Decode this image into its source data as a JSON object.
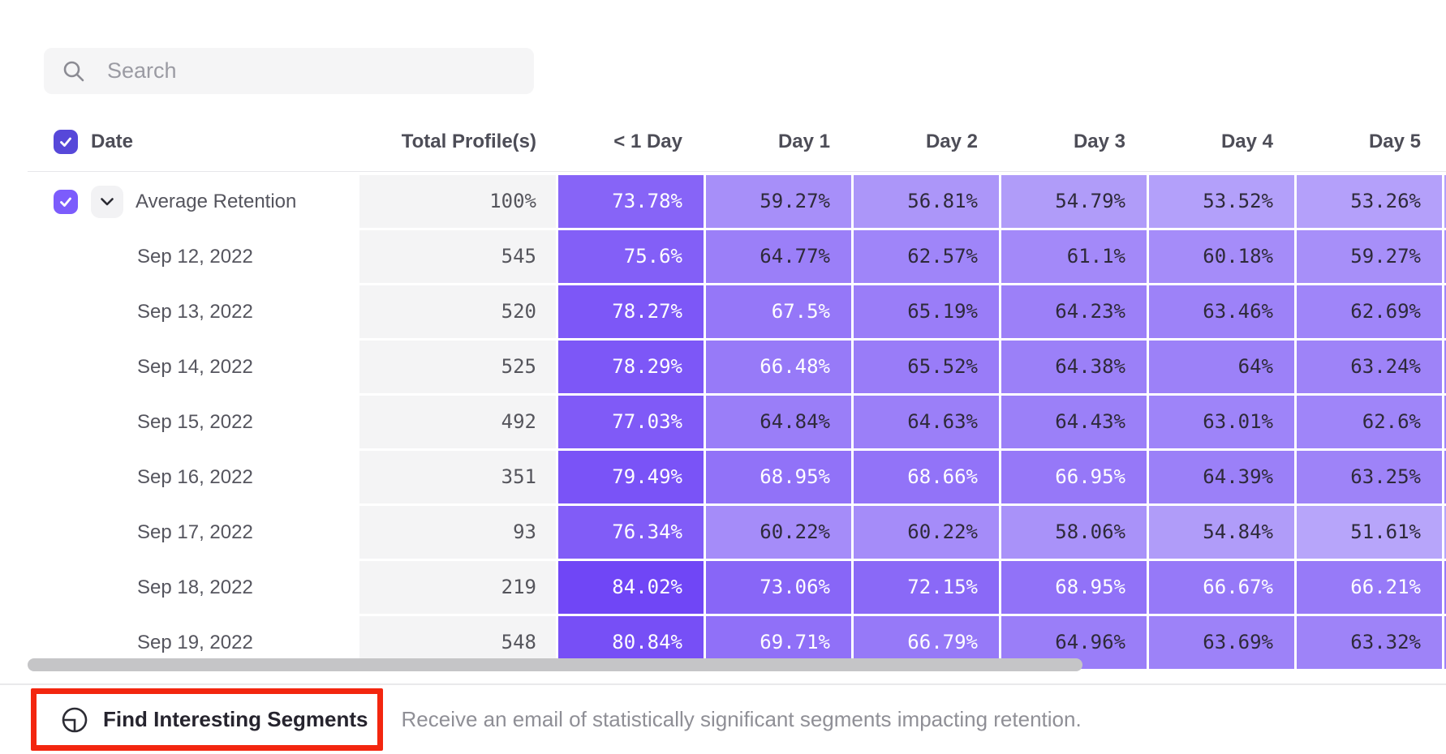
{
  "search": {
    "placeholder": "Search"
  },
  "table": {
    "date_header": "Date",
    "total_header": "Total Profile(s)",
    "day_headers": [
      "< 1 Day",
      "Day 1",
      "Day 2",
      "Day 3",
      "Day 4",
      "Day 5"
    ],
    "rows": [
      {
        "label": "Average Retention",
        "expandable": true,
        "checked": true,
        "total": "100%",
        "values": [
          "73.78%",
          "59.27%",
          "56.81%",
          "54.79%",
          "53.52%",
          "53.26%"
        ]
      },
      {
        "label": "Sep 12, 2022",
        "expandable": false,
        "total": "545",
        "values": [
          "75.6%",
          "64.77%",
          "62.57%",
          "61.1%",
          "60.18%",
          "59.27%"
        ]
      },
      {
        "label": "Sep 13, 2022",
        "expandable": false,
        "total": "520",
        "values": [
          "78.27%",
          "67.5%",
          "65.19%",
          "64.23%",
          "63.46%",
          "62.69%"
        ]
      },
      {
        "label": "Sep 14, 2022",
        "expandable": false,
        "total": "525",
        "values": [
          "78.29%",
          "66.48%",
          "65.52%",
          "64.38%",
          "64%",
          "63.24%"
        ]
      },
      {
        "label": "Sep 15, 2022",
        "expandable": false,
        "total": "492",
        "values": [
          "77.03%",
          "64.84%",
          "64.63%",
          "64.43%",
          "63.01%",
          "62.6%"
        ]
      },
      {
        "label": "Sep 16, 2022",
        "expandable": false,
        "total": "351",
        "values": [
          "79.49%",
          "68.95%",
          "68.66%",
          "66.95%",
          "64.39%",
          "63.25%"
        ]
      },
      {
        "label": "Sep 17, 2022",
        "expandable": false,
        "total": "93",
        "values": [
          "76.34%",
          "60.22%",
          "60.22%",
          "58.06%",
          "54.84%",
          "51.61%"
        ]
      },
      {
        "label": "Sep 18, 2022",
        "expandable": false,
        "total": "219",
        "values": [
          "84.02%",
          "73.06%",
          "72.15%",
          "68.95%",
          "66.67%",
          "66.21%"
        ]
      },
      {
        "label": "Sep 19, 2022",
        "expandable": false,
        "total": "548",
        "values": [
          "80.84%",
          "69.71%",
          "66.79%",
          "64.96%",
          "63.69%",
          "63.32%"
        ]
      }
    ]
  },
  "footer": {
    "button_label": "Find Interesting Segments",
    "description": "Receive an email of statistically significant segments impacting retention."
  },
  "colors": {
    "header_checkbox": "#5748d9",
    "row_checkbox": "#7c5cfc",
    "heatmap_dark": "#6e43f6",
    "heatmap_light": "#bbaafa",
    "cell_text_dark": "#2e2a3a",
    "cell_text_light": "#ffffff",
    "annotation_red": "#f3260f",
    "scrollbar": "#c5c5c7"
  }
}
